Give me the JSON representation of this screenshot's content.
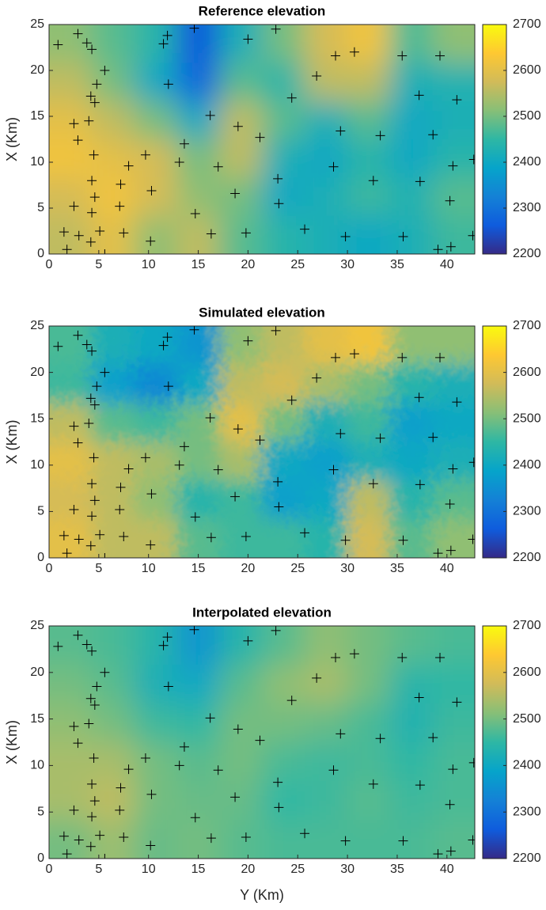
{
  "chart_data": [
    {
      "type": "heatmap",
      "title": "Reference elevation",
      "ylabel": "X (Km)",
      "xlim": [
        0,
        42.8
      ],
      "ylim": [
        0,
        25
      ],
      "xticks": [
        0,
        5,
        10,
        15,
        20,
        25,
        30,
        35,
        40
      ],
      "yticks": [
        0,
        5,
        10,
        15,
        20,
        25
      ],
      "clim": [
        2200,
        2700
      ],
      "cticks": [
        2200,
        2300,
        2400,
        2500,
        2600,
        2700
      ],
      "colormap": "parula",
      "z": [
        [
          2520,
          2480,
          2440,
          2260,
          2420,
          2500,
          2580,
          2620,
          2470,
          2520
        ],
        [
          2560,
          2500,
          2400,
          2280,
          2480,
          2440,
          2560,
          2560,
          2420,
          2430
        ],
        [
          2600,
          2560,
          2500,
          2400,
          2560,
          2480,
          2420,
          2480,
          2400,
          2420
        ],
        [
          2620,
          2600,
          2580,
          2500,
          2560,
          2420,
          2400,
          2440,
          2400,
          2440
        ],
        [
          2580,
          2620,
          2580,
          2520,
          2500,
          2400,
          2420,
          2460,
          2430,
          2480
        ],
        [
          2560,
          2600,
          2520,
          2560,
          2480,
          2440,
          2420,
          2400,
          2420,
          2460
        ]
      ],
      "points": {
        "x": [
          0.9,
          2.9,
          3.8,
          4.3,
          5.6,
          4.8,
          4.2,
          4.6,
          2.5,
          4,
          2.9,
          4.5,
          4.3,
          4.6,
          4.3,
          2.5,
          1.5,
          1.8,
          3,
          4.2,
          5.1,
          5.6,
          7.1,
          7.5,
          8,
          7.2,
          9.7,
          10.3,
          10.2,
          12,
          11.9,
          11.5,
          13.1,
          13.6,
          14.7,
          14.6,
          16.2,
          16.3,
          17,
          18.7,
          19,
          19.8,
          20,
          21.2,
          22.8,
          23,
          23.1,
          24.4,
          25.7,
          26.9,
          28.6,
          28.8,
          29.3,
          29.8,
          30.7,
          32.6,
          33.3,
          35.6,
          35.5,
          37.2,
          37.3,
          38.6,
          39.3,
          39.1,
          40.6,
          40.3,
          41,
          42.7,
          42.6,
          40.4
        ],
        "y": [
          22.8,
          24,
          23,
          22.3,
          20,
          18.5,
          17.2,
          16.5,
          14.2,
          14.5,
          12.4,
          10.8,
          8,
          6.2,
          4.5,
          5.2,
          2.4,
          0.5,
          2,
          1.3,
          2.5,
          0,
          5.2,
          2.3,
          9.6,
          7.6,
          10.8,
          6.9,
          1.4,
          18.5,
          23.8,
          22.9,
          10,
          12,
          4.4,
          24.6,
          15.1,
          2.2,
          9.5,
          6.6,
          13.9,
          2.3,
          23.4,
          12.7,
          24.5,
          8.2,
          5.5,
          17,
          2.7,
          19.4,
          9.5,
          21.6,
          13.4,
          1.9,
          22,
          8,
          12.9,
          1.9,
          21.6,
          17.3,
          7.9,
          13,
          21.6,
          0.5,
          9.6,
          5.8,
          16.8,
          10.3,
          2,
          0.8
        ]
      }
    },
    {
      "type": "heatmap",
      "title": "Simulated elevation",
      "ylabel": "X (Km)",
      "xlim": [
        0,
        42.8
      ],
      "ylim": [
        0,
        25
      ],
      "xticks": [
        0,
        5,
        10,
        15,
        20,
        25,
        30,
        35,
        40
      ],
      "yticks": [
        0,
        5,
        10,
        15,
        20,
        25
      ],
      "clim": [
        2200,
        2700
      ],
      "cticks": [
        2200,
        2300,
        2400,
        2500,
        2600,
        2700
      ],
      "colormap": "parula",
      "z": [
        [
          2470,
          2420,
          2400,
          2360,
          2520,
          2560,
          2600,
          2620,
          2520,
          2520
        ],
        [
          2460,
          2380,
          2340,
          2400,
          2560,
          2580,
          2540,
          2500,
          2440,
          2420
        ],
        [
          2560,
          2480,
          2460,
          2500,
          2600,
          2500,
          2420,
          2460,
          2380,
          2400
        ],
        [
          2600,
          2560,
          2540,
          2500,
          2540,
          2400,
          2380,
          2420,
          2400,
          2420
        ],
        [
          2580,
          2560,
          2520,
          2440,
          2460,
          2380,
          2400,
          2560,
          2440,
          2480
        ],
        [
          2600,
          2560,
          2560,
          2480,
          2460,
          2460,
          2440,
          2580,
          2480,
          2520
        ]
      ],
      "points": {
        "x": [
          0.9,
          2.9,
          3.8,
          4.3,
          5.6,
          4.8,
          4.2,
          4.6,
          2.5,
          4,
          2.9,
          4.5,
          4.3,
          4.6,
          4.3,
          2.5,
          1.5,
          1.8,
          3,
          4.2,
          5.1,
          5.6,
          7.1,
          7.5,
          8,
          7.2,
          9.7,
          10.3,
          10.2,
          12,
          11.9,
          11.5,
          13.1,
          13.6,
          14.7,
          14.6,
          16.2,
          16.3,
          17,
          18.7,
          19,
          19.8,
          20,
          21.2,
          22.8,
          23,
          23.1,
          24.4,
          25.7,
          26.9,
          28.6,
          28.8,
          29.3,
          29.8,
          30.7,
          32.6,
          33.3,
          35.6,
          35.5,
          37.2,
          37.3,
          38.6,
          39.3,
          39.1,
          40.6,
          40.3,
          41,
          42.7,
          42.6,
          40.4
        ],
        "y": [
          22.8,
          24,
          23,
          22.3,
          20,
          18.5,
          17.2,
          16.5,
          14.2,
          14.5,
          12.4,
          10.8,
          8,
          6.2,
          4.5,
          5.2,
          2.4,
          0.5,
          2,
          1.3,
          2.5,
          0,
          5.2,
          2.3,
          9.6,
          7.6,
          10.8,
          6.9,
          1.4,
          18.5,
          23.8,
          22.9,
          10,
          12,
          4.4,
          24.6,
          15.1,
          2.2,
          9.5,
          6.6,
          13.9,
          2.3,
          23.4,
          12.7,
          24.5,
          8.2,
          5.5,
          17,
          2.7,
          19.4,
          9.5,
          21.6,
          13.4,
          1.9,
          22,
          8,
          12.9,
          1.9,
          21.6,
          17.3,
          7.9,
          13,
          21.6,
          0.5,
          9.6,
          5.8,
          16.8,
          10.3,
          2,
          0.8
        ]
      }
    },
    {
      "type": "heatmap",
      "title": "Interpolated elevation",
      "ylabel": "X (Km)",
      "xlabel": "Y (Km)",
      "xlim": [
        0,
        42.8
      ],
      "ylim": [
        0,
        25
      ],
      "xticks": [
        0,
        5,
        10,
        15,
        20,
        25,
        30,
        35,
        40
      ],
      "yticks": [
        0,
        5,
        10,
        15,
        20,
        25
      ],
      "clim": [
        2200,
        2700
      ],
      "cticks": [
        2200,
        2300,
        2400,
        2500,
        2600,
        2700
      ],
      "colormap": "parula",
      "z": [
        [
          2480,
          2470,
          2440,
          2360,
          2440,
          2480,
          2520,
          2500,
          2480,
          2470
        ],
        [
          2500,
          2480,
          2420,
          2400,
          2480,
          2520,
          2540,
          2500,
          2440,
          2450
        ],
        [
          2520,
          2500,
          2460,
          2450,
          2500,
          2500,
          2490,
          2470,
          2430,
          2460
        ],
        [
          2540,
          2540,
          2500,
          2480,
          2500,
          2470,
          2460,
          2470,
          2450,
          2470
        ],
        [
          2540,
          2560,
          2500,
          2490,
          2490,
          2450,
          2460,
          2480,
          2460,
          2470
        ],
        [
          2500,
          2530,
          2490,
          2500,
          2480,
          2470,
          2470,
          2470,
          2470,
          2480
        ]
      ],
      "points": {
        "x": [
          0.9,
          2.9,
          3.8,
          4.3,
          5.6,
          4.8,
          4.2,
          4.6,
          2.5,
          4,
          2.9,
          4.5,
          4.3,
          4.6,
          4.3,
          2.5,
          1.5,
          1.8,
          3,
          4.2,
          5.1,
          5.6,
          7.1,
          7.5,
          8,
          7.2,
          9.7,
          10.3,
          10.2,
          12,
          11.9,
          11.5,
          13.1,
          13.6,
          14.7,
          14.6,
          16.2,
          16.3,
          17,
          18.7,
          19,
          19.8,
          20,
          21.2,
          22.8,
          23,
          23.1,
          24.4,
          25.7,
          26.9,
          28.6,
          28.8,
          29.3,
          29.8,
          30.7,
          32.6,
          33.3,
          35.6,
          35.5,
          37.2,
          37.3,
          38.6,
          39.3,
          39.1,
          40.6,
          40.3,
          41,
          42.7,
          42.6,
          40.4
        ],
        "y": [
          22.8,
          24,
          23,
          22.3,
          20,
          18.5,
          17.2,
          16.5,
          14.2,
          14.5,
          12.4,
          10.8,
          8,
          6.2,
          4.5,
          5.2,
          2.4,
          0.5,
          2,
          1.3,
          2.5,
          0,
          5.2,
          2.3,
          9.6,
          7.6,
          10.8,
          6.9,
          1.4,
          18.5,
          23.8,
          22.9,
          10,
          12,
          4.4,
          24.6,
          15.1,
          2.2,
          9.5,
          6.6,
          13.9,
          2.3,
          23.4,
          12.7,
          24.5,
          8.2,
          5.5,
          17,
          2.7,
          19.4,
          9.5,
          21.6,
          13.4,
          1.9,
          22,
          8,
          12.9,
          1.9,
          21.6,
          17.3,
          7.9,
          13,
          21.6,
          0.5,
          9.6,
          5.8,
          16.8,
          10.3,
          2,
          0.8
        ]
      }
    }
  ]
}
